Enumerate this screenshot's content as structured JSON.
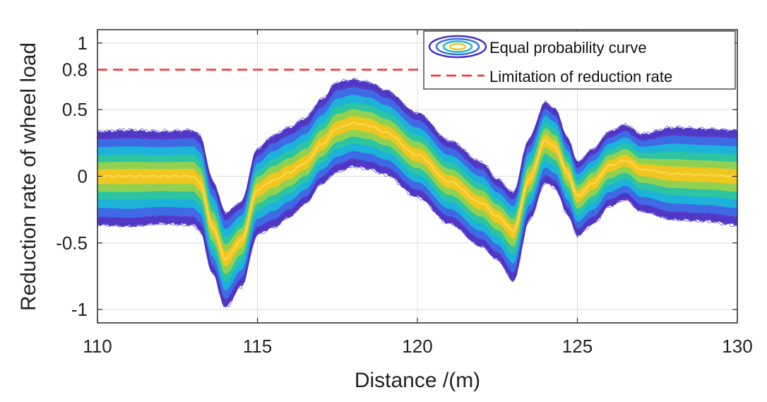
{
  "chart_data": {
    "type": "line",
    "title": "",
    "xlabel": "Distance /(m)",
    "ylabel": "Reduction rate of  wheel load",
    "xlim": [
      110,
      130
    ],
    "ylim": [
      -1.1,
      1.1
    ],
    "xticks": [
      110,
      115,
      120,
      125,
      130
    ],
    "xtick_labels": [
      "110",
      "115",
      "120",
      "125",
      "130"
    ],
    "yticks": [
      1,
      0.5,
      0,
      -0.5,
      -1
    ],
    "ytick_labels": [
      "1",
      "0.5",
      "0",
      "-0.5",
      "-1"
    ],
    "extra_ytick": {
      "value": 0.8,
      "label": "0.8"
    },
    "grid": true,
    "legend_position": "top-right",
    "legend": [
      {
        "label": "Equal probability curve",
        "style": "contour-ellipses"
      },
      {
        "label": "Limitation of reduction rate",
        "style": "dashed-line"
      }
    ],
    "limit_line": {
      "y": 0.8,
      "color": "#ff2a2a",
      "style": "dashed"
    },
    "band_colors": [
      "#4a2fc4",
      "#3d6ee8",
      "#19b9d8",
      "#2fc79c",
      "#9ad14a",
      "#f7c51c"
    ],
    "series": [
      {
        "name": "Equal probability curve (median)",
        "x": [
          110,
          111,
          112,
          113,
          113.2,
          113.6,
          114,
          114.5,
          115,
          115.5,
          116,
          116.5,
          117,
          117.5,
          118,
          118.5,
          119,
          120,
          121,
          122,
          122.5,
          123,
          123.5,
          124,
          124.3,
          124.7,
          125,
          125.5,
          126,
          126.5,
          127,
          128,
          129,
          130
        ],
        "values": [
          0,
          0,
          0,
          0,
          -0.05,
          -0.38,
          -0.62,
          -0.48,
          -0.1,
          -0.03,
          0.03,
          0.1,
          0.24,
          0.36,
          0.4,
          0.38,
          0.33,
          0.16,
          -0.04,
          -0.2,
          -0.3,
          -0.41,
          -0.02,
          0.27,
          0.22,
          0.02,
          -0.15,
          -0.05,
          0.08,
          0.12,
          0.05,
          0.02,
          0.01,
          0
        ],
        "upper_envelope": [
          0.33,
          0.34,
          0.33,
          0.34,
          0.3,
          -0.04,
          -0.28,
          -0.2,
          0.2,
          0.3,
          0.36,
          0.43,
          0.57,
          0.7,
          0.72,
          0.7,
          0.64,
          0.47,
          0.26,
          0.1,
          -0.03,
          -0.13,
          0.28,
          0.55,
          0.5,
          0.28,
          0.1,
          0.2,
          0.33,
          0.38,
          0.31,
          0.36,
          0.35,
          0.34
        ],
        "lower_envelope": [
          -0.36,
          -0.37,
          -0.35,
          -0.36,
          -0.4,
          -0.72,
          -0.98,
          -0.82,
          -0.43,
          -0.38,
          -0.3,
          -0.2,
          -0.05,
          0.04,
          0.08,
          0.06,
          0.02,
          -0.15,
          -0.35,
          -0.52,
          -0.62,
          -0.78,
          -0.32,
          -0.04,
          -0.08,
          -0.28,
          -0.44,
          -0.35,
          -0.22,
          -0.17,
          -0.26,
          -0.32,
          -0.33,
          -0.36
        ]
      }
    ]
  }
}
